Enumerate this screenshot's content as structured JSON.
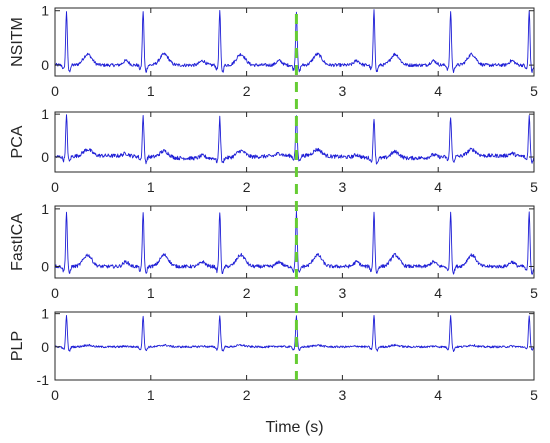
{
  "chart_data": [
    {
      "type": "line",
      "ylabel": "NSITM",
      "xlim": [
        0,
        5
      ],
      "ylim": [
        -0.2,
        1.05
      ],
      "xticks": [
        0,
        1,
        2,
        3,
        4,
        5
      ],
      "yticks": [
        0,
        1
      ],
      "peaks_s": [
        0.12,
        0.92,
        1.72,
        2.52,
        3.33,
        4.13,
        4.95
      ],
      "peak_height": 1.0,
      "t_wave_height": 0.2,
      "series": [
        {
          "values_sample_interval_s": 0.01
        }
      ]
    },
    {
      "type": "line",
      "ylabel": "PCA",
      "xlim": [
        0,
        5
      ],
      "ylim": [
        -0.35,
        1.05
      ],
      "xticks": [
        0,
        1,
        2,
        3,
        4,
        5
      ],
      "yticks": [
        0,
        1
      ],
      "peaks_s": [
        0.12,
        0.92,
        1.72,
        2.52,
        3.33,
        4.13,
        4.95
      ],
      "peak_height": 0.95,
      "t_wave_height": 0.15
    },
    {
      "type": "line",
      "ylabel": "FastICA",
      "xlim": [
        0,
        5
      ],
      "ylim": [
        -0.2,
        1.05
      ],
      "xticks": [
        0,
        1,
        2,
        3,
        4,
        5
      ],
      "yticks": [
        0,
        1
      ],
      "peaks_s": [
        0.12,
        0.92,
        1.72,
        2.52,
        3.33,
        4.13,
        4.95
      ],
      "peak_height": 0.95,
      "t_wave_height": 0.2
    },
    {
      "type": "line",
      "ylabel": "PLP",
      "xlabel": "Time (s)",
      "xlim": [
        0,
        5
      ],
      "ylim": [
        -1,
        1.05
      ],
      "xticks": [
        0,
        1,
        2,
        3,
        4,
        5
      ],
      "yticks": [
        -1,
        0,
        1
      ],
      "peaks_s": [
        0.12,
        0.92,
        1.72,
        2.52,
        3.33,
        4.13,
        4.95
      ],
      "peak_height": 0.95,
      "t_wave_height": 0.05
    }
  ],
  "marker_line": {
    "x": 2.52,
    "color": "#66cc33"
  },
  "colors": {
    "signal": "#1f1fd6",
    "axis": "#262626"
  }
}
